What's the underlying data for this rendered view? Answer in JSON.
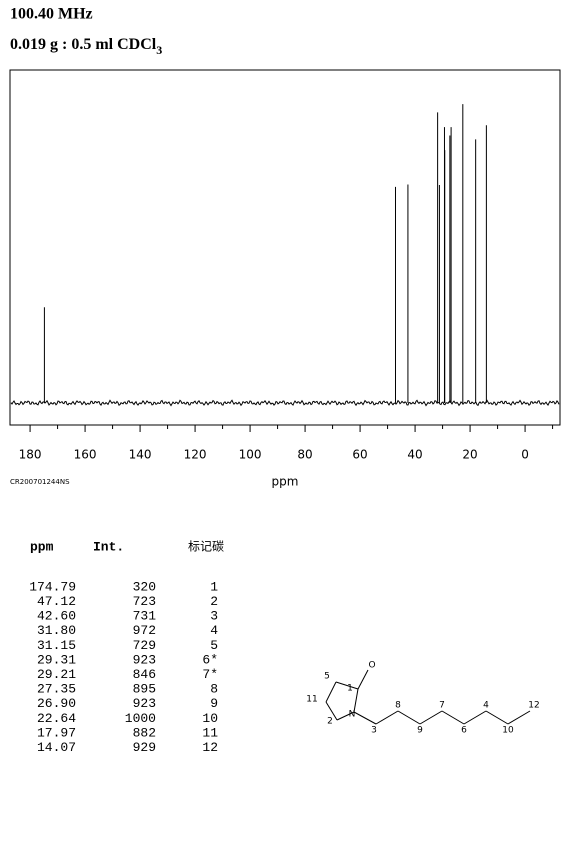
{
  "chart_data": {
    "type": "stick",
    "title": "100.40 MHz",
    "subtitle": "0.019 g : 0.5 ml CDCl",
    "subtitle_subscript": "3",
    "x_label": "ppm",
    "sample_id": "CR200701244NS",
    "x": [
      174.79,
      47.12,
      42.6,
      31.8,
      31.15,
      29.31,
      29.21,
      27.35,
      26.9,
      22.64,
      17.97,
      14.07
    ],
    "values": [
      320,
      723,
      731,
      972,
      729,
      923,
      846,
      895,
      923,
      1000,
      882,
      929
    ],
    "color": "#000000",
    "xlim": [
      187.3,
      -12.7
    ],
    "ylim": [
      -74,
      1114
    ],
    "xticks": [
      180,
      160,
      140,
      120,
      100,
      80,
      60,
      40,
      20,
      0
    ],
    "xminorticks": [
      170,
      150,
      130,
      110,
      90,
      70,
      50,
      30,
      10,
      -10
    ]
  },
  "table": {
    "columns": [
      "ppm",
      "Int.",
      "标记碳"
    ],
    "rows": [
      [
        "174.79",
        "320",
        "1"
      ],
      [
        "47.12",
        "723",
        "2"
      ],
      [
        "42.60",
        "731",
        "3"
      ],
      [
        "31.80",
        "972",
        "4"
      ],
      [
        "31.15",
        "729",
        "5"
      ],
      [
        "29.31",
        "923",
        "6*"
      ],
      [
        "29.21",
        "846",
        "7*"
      ],
      [
        "27.35",
        "895",
        "8"
      ],
      [
        "26.90",
        "923",
        "9"
      ],
      [
        "22.64",
        "1000",
        "10"
      ],
      [
        "17.97",
        "882",
        "11"
      ],
      [
        "14.07",
        "929",
        "12"
      ]
    ]
  },
  "structure": {
    "labels": [
      "5",
      "1",
      "O",
      "11",
      "2",
      "N",
      "3",
      "8",
      "9",
      "7",
      "6",
      "4",
      "10",
      "12"
    ]
  }
}
